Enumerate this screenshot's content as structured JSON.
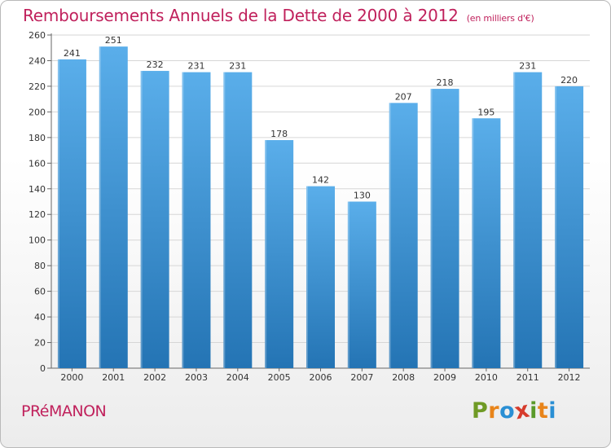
{
  "chart_data": {
    "type": "bar",
    "title": "Remboursements Annuels de la Dette de 2000 à 2012",
    "subtitle": "(en milliers d'€)",
    "categories": [
      "2000",
      "2001",
      "2002",
      "2003",
      "2004",
      "2005",
      "2006",
      "2007",
      "2008",
      "2009",
      "2010",
      "2011",
      "2012"
    ],
    "values": [
      241,
      251,
      232,
      231,
      231,
      178,
      142,
      130,
      207,
      218,
      195,
      231,
      220
    ],
    "ylim": [
      0,
      260
    ],
    "yticks": [
      0,
      20,
      40,
      60,
      80,
      100,
      120,
      140,
      160,
      180,
      200,
      220,
      240,
      260
    ],
    "grid": true,
    "xlabel": "",
    "ylabel": ""
  },
  "footer": {
    "town": "PRéMANON",
    "logo_letters": [
      "P",
      "r",
      "o",
      "x",
      "i",
      "t",
      "i"
    ]
  },
  "colors": {
    "title": "#c0215c",
    "bar_top": "#5aaeea",
    "bar_bottom": "#2474b4",
    "logo": [
      "#6f9a25",
      "#e8841a",
      "#2a8fd4",
      "#d63b2c",
      "#5a9a2a",
      "#e8841a",
      "#2a8fd4"
    ]
  }
}
